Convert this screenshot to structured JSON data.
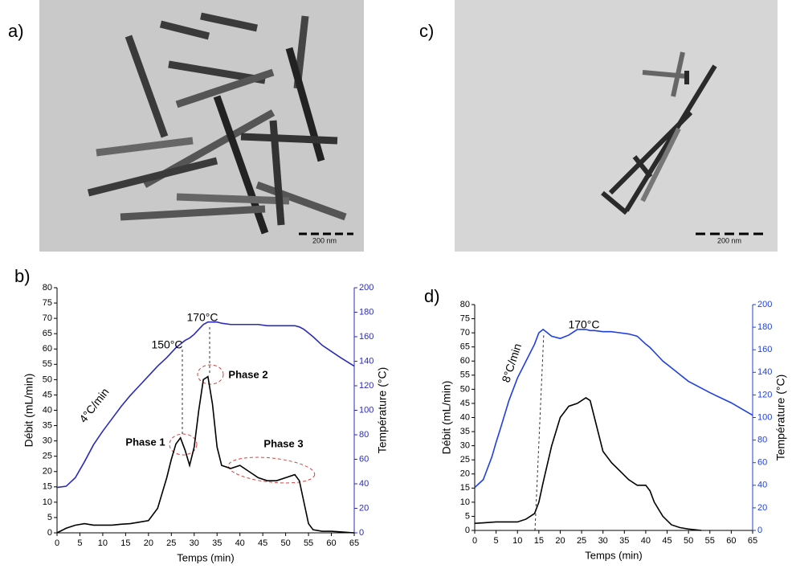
{
  "images": [
    {
      "label": "a)",
      "scale_bar": "200 nm"
    },
    {
      "label": "c)",
      "scale_bar": "200 nm"
    }
  ],
  "chart_data": [
    {
      "type": "line",
      "panel_label": "b)",
      "x_label": "Temps (min)",
      "y_label": "Débit (mL/min)",
      "y2_label": "Température (°C)",
      "annotations": [
        "150°C",
        "170°C",
        "4°C/min",
        "Phase 1",
        "Phase 2",
        "Phase 3"
      ],
      "x": [
        0,
        2,
        4,
        6,
        8,
        10,
        12,
        14,
        16,
        18,
        20,
        22,
        24,
        25,
        26,
        27,
        28,
        29,
        30,
        31,
        32,
        33,
        34,
        35,
        36,
        38,
        40,
        42,
        44,
        46,
        48,
        50,
        52,
        53,
        54,
        55,
        56,
        58,
        60,
        62,
        65
      ],
      "series": [
        {
          "name": "Débit",
          "color": "#000000",
          "values": [
            0,
            1.5,
            2.5,
            3,
            2.5,
            2.5,
            2.5,
            2.8,
            3,
            3.5,
            4,
            8,
            18,
            24,
            29,
            31,
            27,
            22,
            28,
            40,
            50,
            51,
            42,
            28,
            22,
            21,
            22,
            20,
            18,
            17,
            17,
            18,
            19,
            17,
            10,
            3,
            1,
            0.5,
            0.5,
            0.3,
            0
          ]
        },
        {
          "name": "Température",
          "color": "#2b2bb8",
          "axis": "y2",
          "values": [
            37,
            38,
            45,
            58,
            72,
            83,
            93,
            103,
            112,
            120,
            128,
            136,
            143,
            147,
            151,
            154,
            157,
            159,
            162,
            166,
            170,
            172,
            172,
            172,
            171,
            170,
            170,
            170,
            170,
            169,
            169,
            169,
            169,
            168,
            166,
            163,
            160,
            153,
            148,
            143,
            136
          ]
        }
      ],
      "xlim": [
        0,
        65
      ],
      "xticks": [
        0,
        5,
        10,
        15,
        20,
        25,
        30,
        35,
        40,
        45,
        50,
        55,
        60,
        65
      ],
      "ylim": [
        0,
        80
      ],
      "yticks": [
        0,
        5,
        10,
        15,
        20,
        25,
        30,
        35,
        40,
        45,
        50,
        55,
        60,
        65,
        70,
        75,
        80
      ],
      "y2lim": [
        0,
        200
      ],
      "y2ticks": [
        0,
        20,
        40,
        60,
        80,
        100,
        120,
        140,
        160,
        180,
        200
      ]
    },
    {
      "type": "line",
      "panel_label": "d)",
      "x_label": "Temps (min)",
      "y_label": "Débit (mL/min)",
      "y2_label": "Température (°C)",
      "annotations": [
        "170°C",
        "8°C/min"
      ],
      "x": [
        0,
        2,
        4,
        5,
        6,
        8,
        10,
        12,
        14,
        15,
        16,
        18,
        20,
        22,
        24,
        26,
        27,
        28,
        30,
        32,
        34,
        36,
        38,
        40,
        41,
        42,
        44,
        46,
        48,
        50,
        53,
        55,
        60,
        65
      ],
      "series": [
        {
          "name": "Débit",
          "color": "#000000",
          "values": [
            2.5,
            2.7,
            2.9,
            3,
            3,
            3,
            3,
            4,
            6,
            10,
            17,
            30,
            40,
            44,
            45,
            47,
            46,
            40,
            28,
            24,
            21,
            18,
            16,
            16,
            14,
            10,
            5,
            2,
            1,
            0.5,
            0,
            null,
            null,
            null
          ]
        },
        {
          "name": "Température",
          "color": "#1f3fe0",
          "axis": "y2",
          "values": [
            38,
            45,
            65,
            78,
            90,
            115,
            135,
            150,
            165,
            175,
            178,
            172,
            170,
            173,
            178,
            178,
            177,
            177,
            176,
            176,
            175,
            174,
            172,
            165,
            162,
            158,
            150,
            144,
            138,
            132,
            126,
            122,
            113,
            102
          ]
        }
      ],
      "xlim": [
        0,
        65
      ],
      "xticks": [
        0,
        5,
        10,
        15,
        20,
        25,
        30,
        35,
        40,
        45,
        50,
        55,
        60,
        65
      ],
      "ylim": [
        0,
        80
      ],
      "yticks": [
        0,
        5,
        10,
        15,
        20,
        25,
        30,
        35,
        40,
        45,
        50,
        55,
        60,
        65,
        70,
        75,
        80
      ],
      "y2lim": [
        0,
        200
      ],
      "y2ticks": [
        0,
        20,
        40,
        60,
        80,
        100,
        120,
        140,
        160,
        180,
        200
      ]
    }
  ]
}
